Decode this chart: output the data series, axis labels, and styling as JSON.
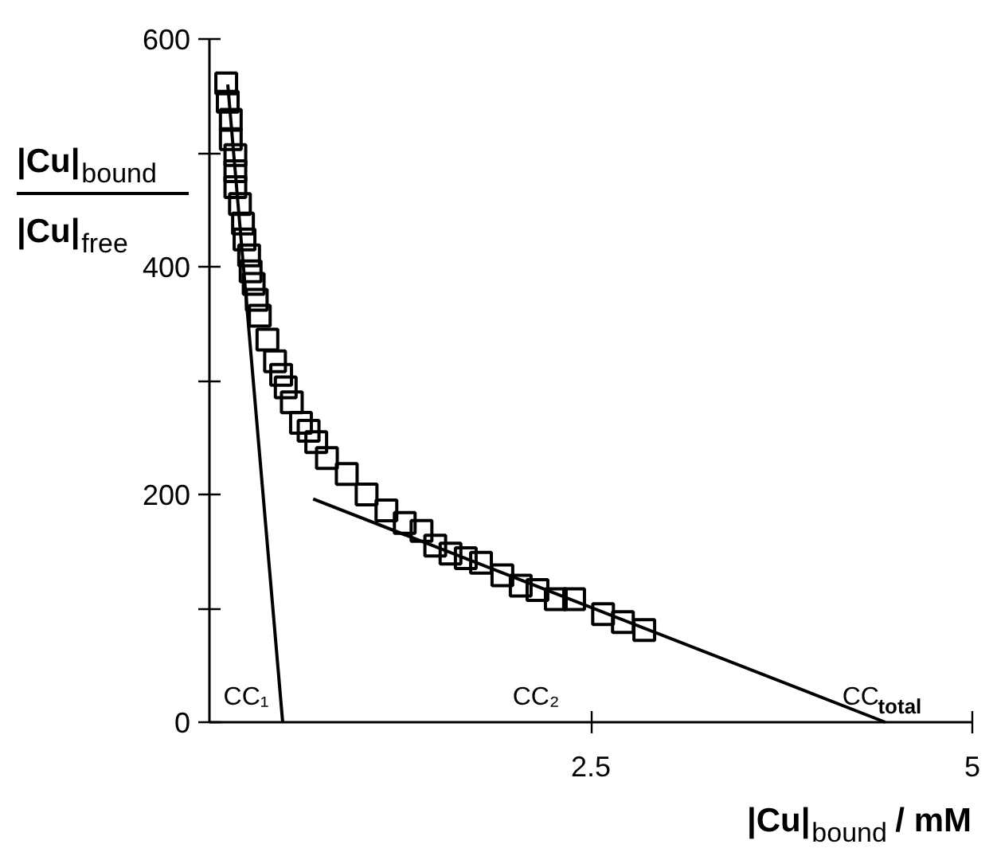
{
  "chart_data": {
    "type": "scatter",
    "xlabel": "|Cu|$_{bound}$ / mM",
    "ylabel": "|Cu|$_{bound}$\n|Cu|$_{free}$",
    "xlim": [
      0,
      5
    ],
    "ylim": [
      0,
      600
    ],
    "xticks": [
      2.5,
      5
    ],
    "yticks": [
      0,
      {
        "value": 100,
        "label": null
      },
      200,
      {
        "value": 300,
        "label": null
      },
      400,
      {
        "value": 500,
        "label": null
      },
      600
    ],
    "grid": false,
    "line_style": "solid",
    "series": [
      {
        "marker": "square",
        "color": "#000000",
        "x": [
          0.11,
          0.12,
          0.14,
          0.14,
          0.17,
          0.17,
          0.17,
          0.2,
          0.22,
          0.23,
          0.26,
          0.27,
          0.29,
          0.31,
          0.33,
          0.38,
          0.43,
          0.47,
          0.5,
          0.54,
          0.6,
          0.65,
          0.7,
          0.77,
          0.9,
          1.03,
          1.16,
          1.28,
          1.39,
          1.48,
          1.58,
          1.68,
          1.78,
          1.92,
          2.04,
          2.15,
          2.27,
          2.39,
          2.58,
          2.71,
          2.85
        ],
        "values": [
          561,
          545,
          529,
          512,
          498,
          484,
          470,
          455,
          438,
          424,
          410,
          396,
          385,
          371,
          357,
          336,
          317,
          305,
          294,
          281,
          263,
          256,
          246,
          232,
          218,
          200,
          186,
          175,
          168,
          155,
          148,
          144,
          140,
          129,
          120,
          116,
          108,
          108,
          95,
          88,
          81
        ]
      },
      {
        "type": "line",
        "color": "#000000",
        "x": [
          0.12,
          0.48
        ],
        "values": [
          560,
          0
        ]
      },
      {
        "type": "line",
        "color": "#000000",
        "x": [
          0.68,
          4.43
        ],
        "values": [
          196,
          0
        ]
      }
    ],
    "annotations": [
      {
        "text": "CC₁",
        "x": 0.48,
        "y": 0
      },
      "CC₂",
      {
        "text": "CC$_{total}$",
        "x": 4.43,
        "y": 0
      }
    ]
  }
}
